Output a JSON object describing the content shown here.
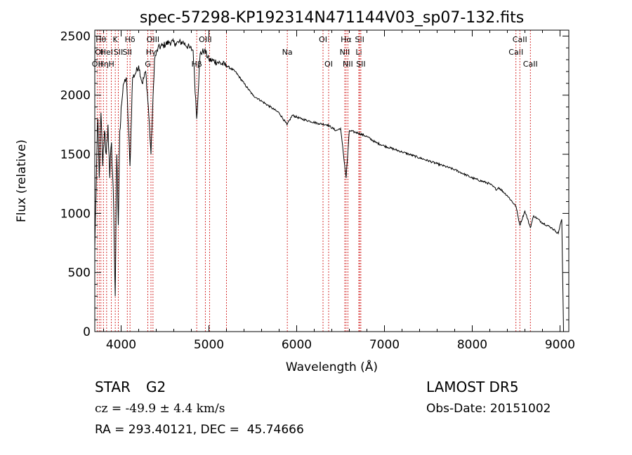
{
  "chart_data": {
    "type": "line",
    "title": "spec-57298-KP192314N471144V03_sp07-132.fits",
    "xlabel": "Wavelength (Å)",
    "ylabel": "Flux (relative)",
    "xlim": [
      3700,
      9100
    ],
    "ylim": [
      0,
      2550
    ],
    "xticks": [
      4000,
      5000,
      6000,
      7000,
      8000,
      9000
    ],
    "yticks": [
      0,
      500,
      1000,
      1500,
      2000,
      2500
    ],
    "grid": false,
    "series": [
      {
        "x": [
          3700,
          3720,
          3735,
          3750,
          3770,
          3790,
          3810,
          3830,
          3850,
          3870,
          3890,
          3910,
          3933,
          3950,
          3968,
          3985,
          4000,
          4030,
          4060,
          4101,
          4130,
          4160,
          4200,
          4240,
          4280,
          4310,
          4340,
          4380,
          4420,
          4480,
          4550,
          4620,
          4700,
          4780,
          4820,
          4861,
          4900,
          4950,
          5000,
          5100,
          5200,
          5300,
          5400,
          5500,
          5600,
          5700,
          5800,
          5890,
          5950,
          6050,
          6150,
          6250,
          6350,
          6450,
          6500,
          6563,
          6600,
          6700,
          6800,
          6900,
          7000,
          7200,
          7400,
          7600,
          7800,
          8000,
          8200,
          8280,
          8300,
          8400,
          8498,
          8542,
          8600,
          8662,
          8700,
          8800,
          8900,
          8950,
          8980,
          9000,
          9020,
          9040
        ],
        "y": [
          700,
          1400,
          1800,
          1300,
          1850,
          1400,
          1700,
          1500,
          1750,
          1300,
          1600,
          1200,
          300,
          1500,
          900,
          1700,
          1900,
          2100,
          2150,
          1400,
          2150,
          2180,
          2250,
          2100,
          2200,
          1900,
          1500,
          2300,
          2400,
          2420,
          2450,
          2440,
          2450,
          2400,
          2380,
          1800,
          2350,
          2380,
          2300,
          2280,
          2250,
          2200,
          2100,
          2000,
          1950,
          1900,
          1850,
          1750,
          1830,
          1800,
          1780,
          1760,
          1750,
          1700,
          1720,
          1300,
          1700,
          1680,
          1650,
          1600,
          1570,
          1520,
          1470,
          1420,
          1370,
          1300,
          1250,
          1200,
          1220,
          1150,
          1060,
          900,
          1020,
          880,
          980,
          920,
          880,
          850,
          830,
          900,
          950,
          0
        ]
      }
    ],
    "line_markers": [
      {
        "wave": 3727,
        "label": "OII",
        "row": 2
      },
      {
        "wave": 3750,
        "label": "OI",
        "row": 1
      },
      {
        "wave": 3770,
        "label": "Hθ",
        "row": 0
      },
      {
        "wave": 3798,
        "label": "Hη",
        "row": 2
      },
      {
        "wave": 3835,
        "label": "HeI",
        "row": 1
      },
      {
        "wave": 3889,
        "label": "H",
        "row": 2
      },
      {
        "wave": 3933,
        "label": "K",
        "row": 0
      },
      {
        "wave": 3968,
        "label": "SII",
        "row": 1
      },
      {
        "wave": 4101,
        "label": "Hδ",
        "row": 0
      },
      {
        "wave": 4070,
        "label": "SII",
        "row": 1
      },
      {
        "wave": 4304,
        "label": "G",
        "row": 2
      },
      {
        "wave": 4340,
        "label": "Hγ",
        "row": 1
      },
      {
        "wave": 4363,
        "label": "OIII",
        "row": 0
      },
      {
        "wave": 4861,
        "label": "Hβ",
        "row": 2
      },
      {
        "wave": 4959,
        "label": "OIII",
        "row": 0
      },
      {
        "wave": 5007,
        "label": "",
        "row": 0
      },
      {
        "wave": 5200,
        "label": "",
        "row": 0
      },
      {
        "wave": 5893,
        "label": "Na",
        "row": 1
      },
      {
        "wave": 6300,
        "label": "OI",
        "row": 0
      },
      {
        "wave": 6364,
        "label": "OI",
        "row": 2
      },
      {
        "wave": 6548,
        "label": "NII",
        "row": 1
      },
      {
        "wave": 6563,
        "label": "Hα",
        "row": 0
      },
      {
        "wave": 6583,
        "label": "NII",
        "row": 2
      },
      {
        "wave": 6708,
        "label": "Li",
        "row": 1
      },
      {
        "wave": 6717,
        "label": "SII",
        "row": 0
      },
      {
        "wave": 6731,
        "label": "SII",
        "row": 2
      },
      {
        "wave": 8498,
        "label": "CaII",
        "row": 1
      },
      {
        "wave": 8542,
        "label": "CaII",
        "row": 0
      },
      {
        "wave": 8662,
        "label": "CaII",
        "row": 2
      }
    ],
    "marker_color": "#cc0000"
  },
  "info": {
    "object": "STAR",
    "subclass": "G2",
    "survey": "LAMOST DR5",
    "cz": "cz = -49.9 ± 4.4 km/s",
    "obsdate": "Obs-Date: 20151002",
    "coords": "RA = 293.40121, DEC =  45.74666"
  }
}
